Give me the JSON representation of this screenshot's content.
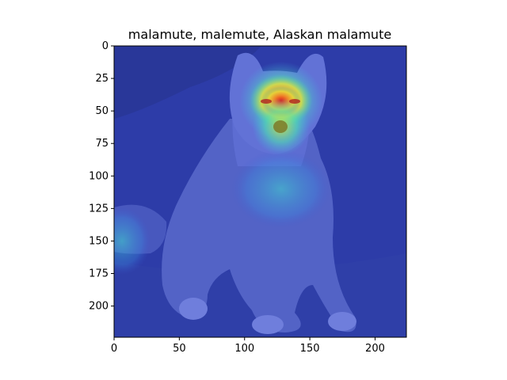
{
  "chart_data": {
    "type": "heatmap",
    "title": "malamute, malemute, Alaskan malamute",
    "xlabel": "",
    "ylabel": "",
    "xlim": [
      0,
      224
    ],
    "ylim": [
      224,
      0
    ],
    "x_ticks": [
      0,
      50,
      100,
      150,
      200
    ],
    "y_ticks": [
      0,
      25,
      50,
      75,
      100,
      125,
      150,
      175,
      200
    ],
    "grid": false,
    "colormap": "jet",
    "colors": {
      "background": "#2b3aa8",
      "ground_dark": "#24318f",
      "dog_body": "#5a6ad0",
      "activation_peak": "#e8433a"
    },
    "activation_regions": [
      {
        "cx": 128,
        "cy": 42,
        "rx": 32,
        "ry": 30,
        "level": 0.7
      },
      {
        "cx": 128,
        "cy": 42,
        "rx": 24,
        "ry": 20,
        "level": 0.85
      },
      {
        "cx": 128,
        "cy": 42,
        "rx": 15,
        "ry": 11,
        "level": 1.0
      },
      {
        "cx": 128,
        "cy": 62,
        "rx": 22,
        "ry": 22,
        "level": 0.6
      },
      {
        "cx": 128,
        "cy": 110,
        "rx": 38,
        "ry": 30,
        "level": 0.35
      },
      {
        "cx": 6,
        "cy": 150,
        "rx": 22,
        "ry": 26,
        "level": 0.45
      }
    ]
  }
}
